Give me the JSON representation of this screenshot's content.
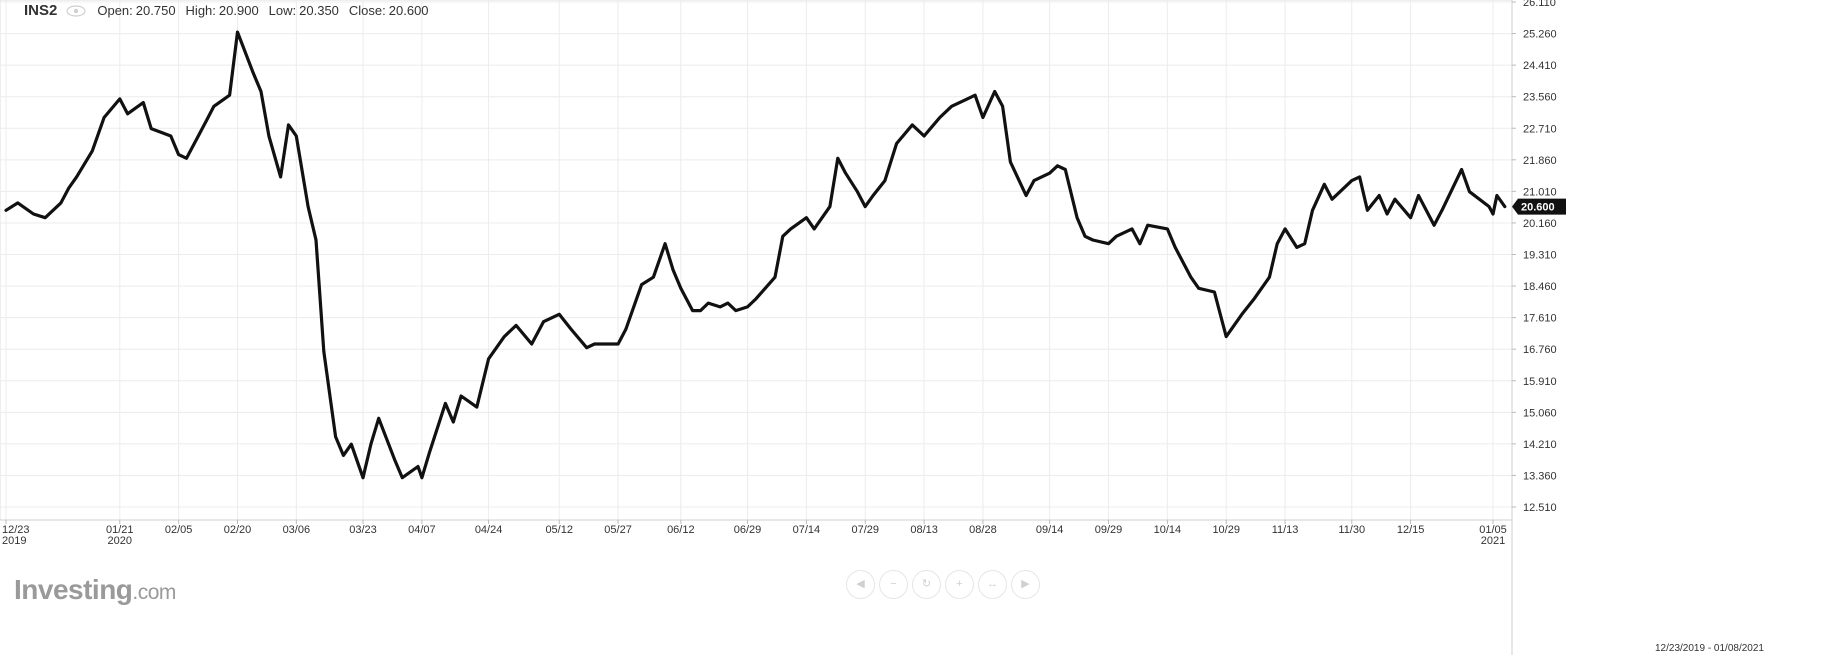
{
  "header": {
    "symbol": "INS2",
    "open_label": "Open:",
    "open": "20.750",
    "high_label": "High:",
    "high": "20.900",
    "low_label": "Low:",
    "low": "20.350",
    "close_label": "Close:",
    "close": "20.600"
  },
  "logo": {
    "brand": "Investing",
    "suffix": ".com"
  },
  "date_range": "12/23/2019 - 01/08/2021",
  "colors": {
    "line": "#111111",
    "grid": "#ececec",
    "price_badge_bg": "#111111",
    "price_badge_text": "#ffffff"
  },
  "icons": [
    "eye-icon",
    "arrow-left-icon",
    "zoom-out-icon",
    "reset-icon",
    "zoom-in-icon",
    "fit-icon",
    "arrow-right-icon"
  ],
  "chart_data": {
    "type": "line",
    "title": "",
    "xlabel": "",
    "ylabel": "",
    "ylim": [
      11.6,
      26.2
    ],
    "grid": true,
    "y_ticks": [
      "12.510",
      "13.360",
      "14.210",
      "15.060",
      "15.910",
      "16.760",
      "17.610",
      "18.460",
      "19.310",
      "20.160",
      "21.010",
      "21.860",
      "22.710",
      "23.560",
      "24.410",
      "25.260",
      "26.110"
    ],
    "x_ticks": [
      {
        "x": "2019-12-23",
        "label": "12/23",
        "sub": "2019"
      },
      {
        "x": "2020-01-21",
        "label": "01/21",
        "sub": "2020"
      },
      {
        "x": "2020-02-05",
        "label": "02/05",
        "sub": ""
      },
      {
        "x": "2020-02-20",
        "label": "02/20",
        "sub": ""
      },
      {
        "x": "2020-03-06",
        "label": "03/06",
        "sub": ""
      },
      {
        "x": "2020-03-23",
        "label": "03/23",
        "sub": ""
      },
      {
        "x": "2020-04-07",
        "label": "04/07",
        "sub": ""
      },
      {
        "x": "2020-04-24",
        "label": "04/24",
        "sub": ""
      },
      {
        "x": "2020-05-12",
        "label": "05/12",
        "sub": ""
      },
      {
        "x": "2020-05-27",
        "label": "05/27",
        "sub": ""
      },
      {
        "x": "2020-06-12",
        "label": "06/12",
        "sub": ""
      },
      {
        "x": "2020-06-29",
        "label": "06/29",
        "sub": ""
      },
      {
        "x": "2020-07-14",
        "label": "07/14",
        "sub": ""
      },
      {
        "x": "2020-07-29",
        "label": "07/29",
        "sub": ""
      },
      {
        "x": "2020-08-13",
        "label": "08/13",
        "sub": ""
      },
      {
        "x": "2020-08-28",
        "label": "08/28",
        "sub": ""
      },
      {
        "x": "2020-09-14",
        "label": "09/14",
        "sub": ""
      },
      {
        "x": "2020-09-29",
        "label": "09/29",
        "sub": ""
      },
      {
        "x": "2020-10-14",
        "label": "10/14",
        "sub": ""
      },
      {
        "x": "2020-10-29",
        "label": "10/29",
        "sub": ""
      },
      {
        "x": "2020-11-13",
        "label": "11/13",
        "sub": ""
      },
      {
        "x": "2020-11-30",
        "label": "11/30",
        "sub": ""
      },
      {
        "x": "2020-12-15",
        "label": "12/15",
        "sub": ""
      },
      {
        "x": "2021-01-05",
        "label": "01/05",
        "sub": "2021"
      }
    ],
    "last_price": "20.600",
    "series": [
      {
        "values": [
          [
            "2019-12-23",
            20.5
          ],
          [
            "2019-12-26",
            20.7
          ],
          [
            "2019-12-30",
            20.4
          ],
          [
            "2020-01-02",
            20.3
          ],
          [
            "2020-01-06",
            20.7
          ],
          [
            "2020-01-08",
            21.1
          ],
          [
            "2020-01-10",
            21.4
          ],
          [
            "2020-01-14",
            22.1
          ],
          [
            "2020-01-17",
            23.0
          ],
          [
            "2020-01-21",
            23.5
          ],
          [
            "2020-01-23",
            23.1
          ],
          [
            "2020-01-27",
            23.4
          ],
          [
            "2020-01-29",
            22.7
          ],
          [
            "2020-02-03",
            22.5
          ],
          [
            "2020-02-05",
            22.0
          ],
          [
            "2020-02-07",
            21.9
          ],
          [
            "2020-02-10",
            22.5
          ],
          [
            "2020-02-12",
            22.9
          ],
          [
            "2020-02-14",
            23.3
          ],
          [
            "2020-02-18",
            23.6
          ],
          [
            "2020-02-20",
            25.3
          ],
          [
            "2020-02-24",
            24.2
          ],
          [
            "2020-02-26",
            23.7
          ],
          [
            "2020-02-28",
            22.5
          ],
          [
            "2020-03-02",
            21.4
          ],
          [
            "2020-03-04",
            22.8
          ],
          [
            "2020-03-06",
            22.5
          ],
          [
            "2020-03-09",
            20.6
          ],
          [
            "2020-03-11",
            19.7
          ],
          [
            "2020-03-13",
            16.7
          ],
          [
            "2020-03-16",
            14.4
          ],
          [
            "2020-03-18",
            13.9
          ],
          [
            "2020-03-20",
            14.2
          ],
          [
            "2020-03-23",
            13.3
          ],
          [
            "2020-03-25",
            14.2
          ],
          [
            "2020-03-27",
            14.9
          ],
          [
            "2020-03-31",
            13.8
          ],
          [
            "2020-04-02",
            13.3
          ],
          [
            "2020-04-06",
            13.6
          ],
          [
            "2020-04-07",
            13.3
          ],
          [
            "2020-04-09",
            14.0
          ],
          [
            "2020-04-13",
            15.3
          ],
          [
            "2020-04-15",
            14.8
          ],
          [
            "2020-04-17",
            15.5
          ],
          [
            "2020-04-21",
            15.2
          ],
          [
            "2020-04-24",
            16.5
          ],
          [
            "2020-04-28",
            17.1
          ],
          [
            "2020-05-01",
            17.4
          ],
          [
            "2020-05-05",
            16.9
          ],
          [
            "2020-05-08",
            17.5
          ],
          [
            "2020-05-12",
            17.7
          ],
          [
            "2020-05-15",
            17.3
          ],
          [
            "2020-05-19",
            16.8
          ],
          [
            "2020-05-21",
            16.9
          ],
          [
            "2020-05-27",
            16.9
          ],
          [
            "2020-05-29",
            17.3
          ],
          [
            "2020-06-02",
            18.5
          ],
          [
            "2020-06-05",
            18.7
          ],
          [
            "2020-06-08",
            19.6
          ],
          [
            "2020-06-10",
            18.9
          ],
          [
            "2020-06-12",
            18.4
          ],
          [
            "2020-06-15",
            17.8
          ],
          [
            "2020-06-17",
            17.8
          ],
          [
            "2020-06-19",
            18.0
          ],
          [
            "2020-06-22",
            17.9
          ],
          [
            "2020-06-24",
            18.0
          ],
          [
            "2020-06-26",
            17.8
          ],
          [
            "2020-06-29",
            17.9
          ],
          [
            "2020-07-01",
            18.1
          ],
          [
            "2020-07-06",
            18.7
          ],
          [
            "2020-07-08",
            19.8
          ],
          [
            "2020-07-10",
            20.0
          ],
          [
            "2020-07-14",
            20.3
          ],
          [
            "2020-07-16",
            20.0
          ],
          [
            "2020-07-20",
            20.6
          ],
          [
            "2020-07-22",
            21.9
          ],
          [
            "2020-07-24",
            21.5
          ],
          [
            "2020-07-27",
            21.0
          ],
          [
            "2020-07-29",
            20.6
          ],
          [
            "2020-07-31",
            20.9
          ],
          [
            "2020-08-03",
            21.3
          ],
          [
            "2020-08-06",
            22.3
          ],
          [
            "2020-08-10",
            22.8
          ],
          [
            "2020-08-13",
            22.5
          ],
          [
            "2020-08-17",
            23.0
          ],
          [
            "2020-08-20",
            23.3
          ],
          [
            "2020-08-24",
            23.5
          ],
          [
            "2020-08-26",
            23.6
          ],
          [
            "2020-08-28",
            23.0
          ],
          [
            "2020-08-31",
            23.7
          ],
          [
            "2020-09-02",
            23.3
          ],
          [
            "2020-09-04",
            21.8
          ],
          [
            "2020-09-08",
            20.9
          ],
          [
            "2020-09-10",
            21.3
          ],
          [
            "2020-09-14",
            21.5
          ],
          [
            "2020-09-16",
            21.7
          ],
          [
            "2020-09-18",
            21.6
          ],
          [
            "2020-09-21",
            20.3
          ],
          [
            "2020-09-23",
            19.8
          ],
          [
            "2020-09-25",
            19.7
          ],
          [
            "2020-09-29",
            19.6
          ],
          [
            "2020-10-01",
            19.8
          ],
          [
            "2020-10-05",
            20.0
          ],
          [
            "2020-10-07",
            19.6
          ],
          [
            "2020-10-09",
            20.1
          ],
          [
            "2020-10-14",
            20.0
          ],
          [
            "2020-10-16",
            19.5
          ],
          [
            "2020-10-20",
            18.7
          ],
          [
            "2020-10-22",
            18.4
          ],
          [
            "2020-10-26",
            18.3
          ],
          [
            "2020-10-29",
            17.1
          ],
          [
            "2020-11-02",
            17.7
          ],
          [
            "2020-11-05",
            18.1
          ],
          [
            "2020-11-09",
            18.7
          ],
          [
            "2020-11-11",
            19.6
          ],
          [
            "2020-11-13",
            20.0
          ],
          [
            "2020-11-16",
            19.5
          ],
          [
            "2020-11-18",
            19.6
          ],
          [
            "2020-11-20",
            20.5
          ],
          [
            "2020-11-23",
            21.2
          ],
          [
            "2020-11-25",
            20.8
          ],
          [
            "2020-11-30",
            21.3
          ],
          [
            "2020-12-02",
            21.4
          ],
          [
            "2020-12-04",
            20.5
          ],
          [
            "2020-12-07",
            20.9
          ],
          [
            "2020-12-09",
            20.4
          ],
          [
            "2020-12-11",
            20.8
          ],
          [
            "2020-12-15",
            20.3
          ],
          [
            "2020-12-17",
            20.9
          ],
          [
            "2020-12-21",
            20.1
          ],
          [
            "2020-12-23",
            20.5
          ],
          [
            "2020-12-28",
            21.6
          ],
          [
            "2020-12-30",
            21.0
          ],
          [
            "2021-01-04",
            20.6
          ],
          [
            "2021-01-05",
            20.4
          ],
          [
            "2021-01-06",
            20.9
          ],
          [
            "2021-01-08",
            20.6
          ]
        ]
      }
    ]
  }
}
